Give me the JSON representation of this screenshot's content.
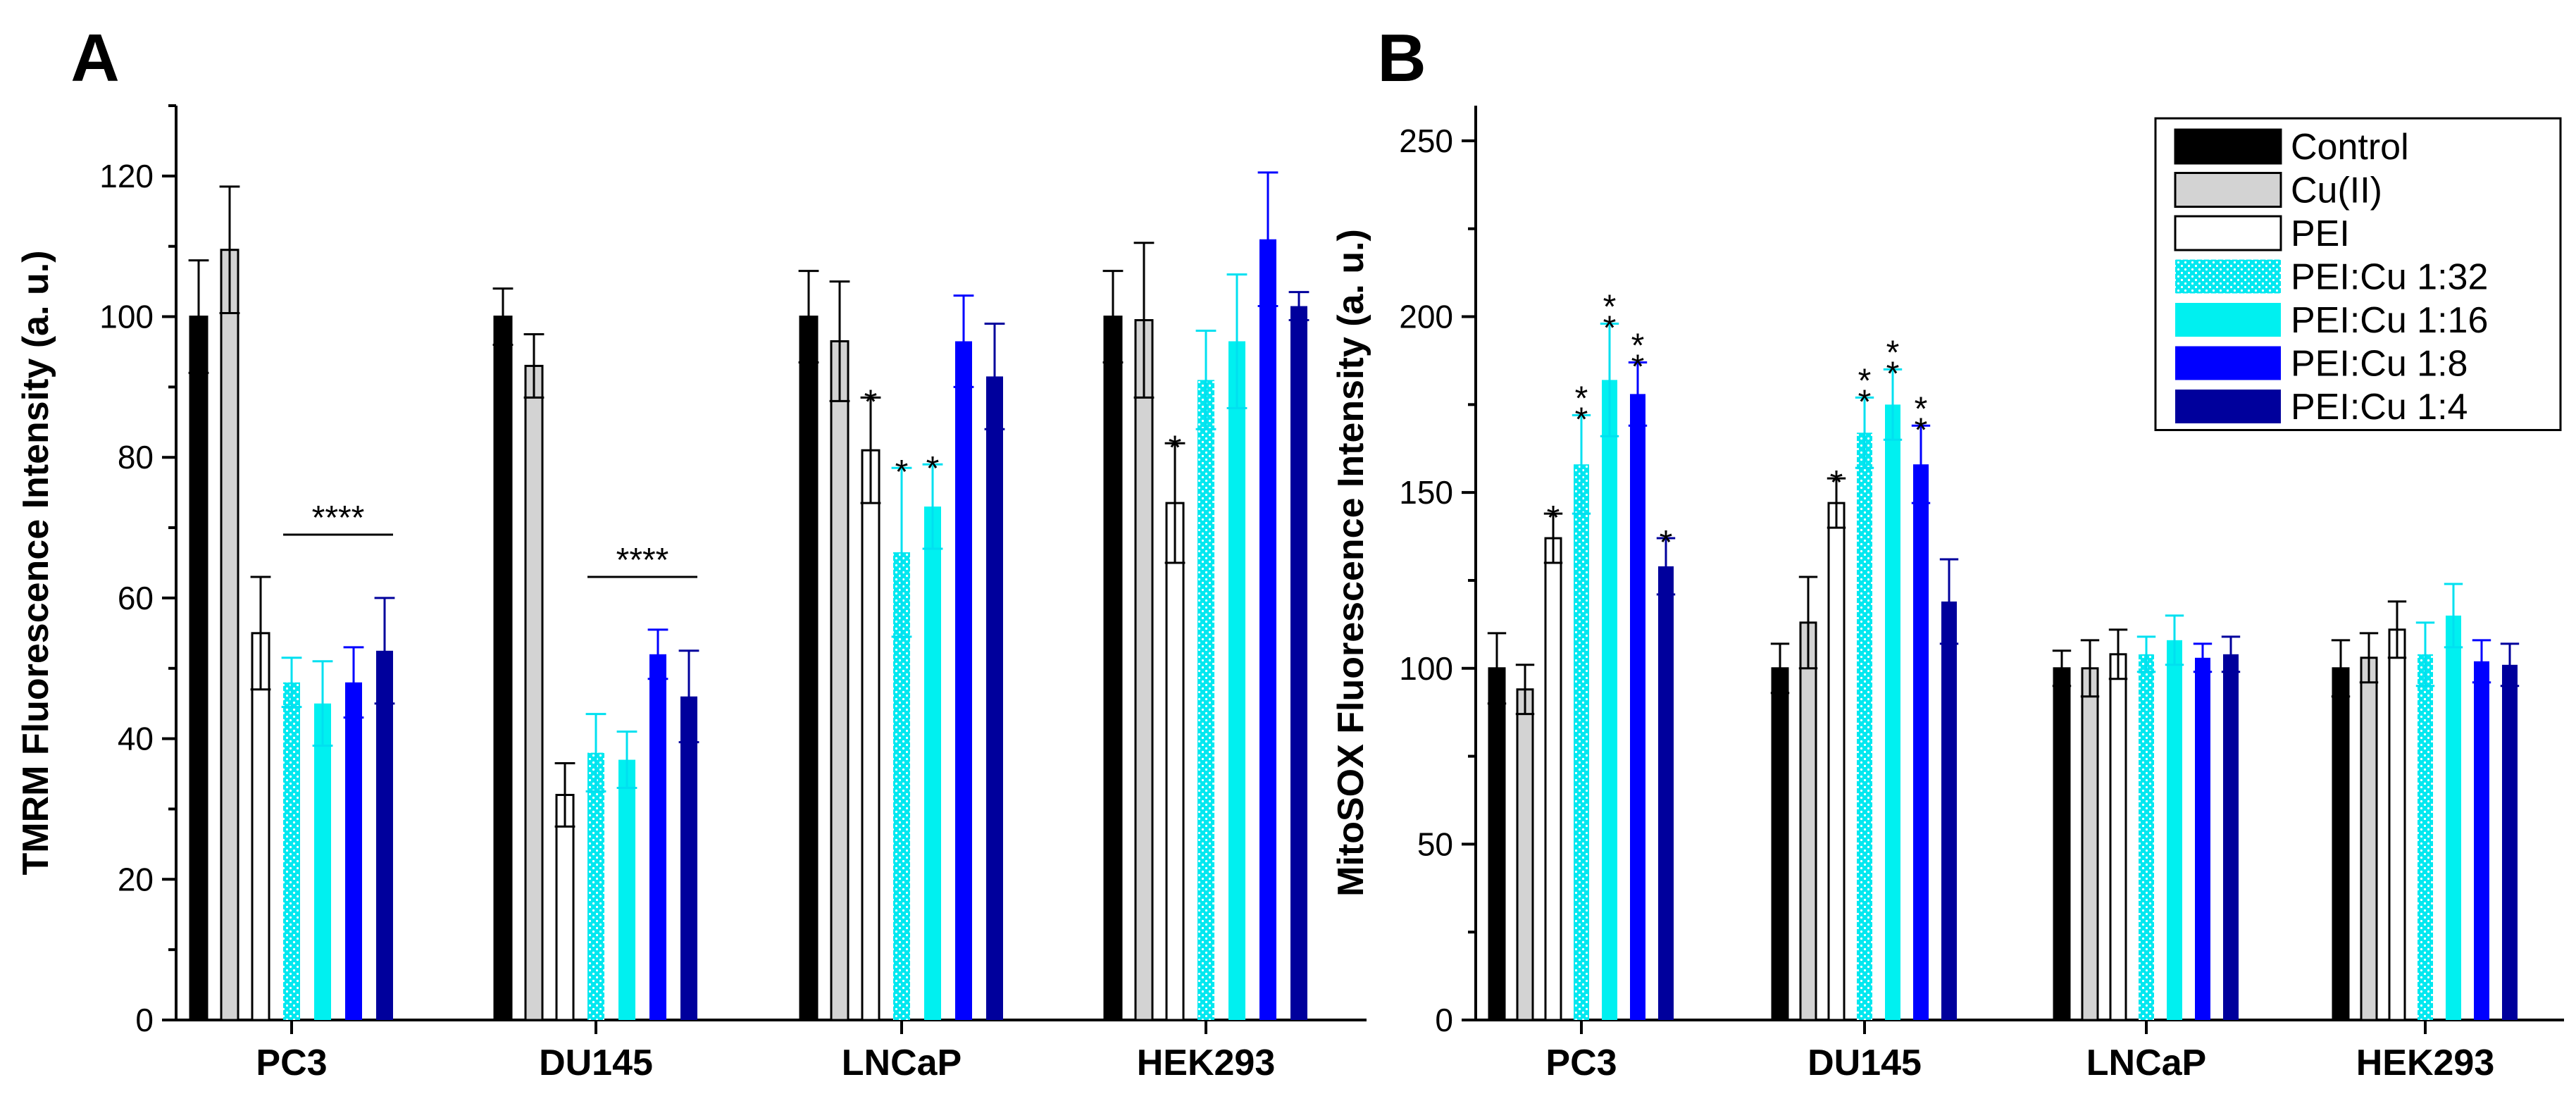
{
  "chart_data": [
    {
      "type": "bar",
      "panel_label": "A",
      "ylabel": "TMRM Fluorescence Intensity (a. u.)",
      "xlabel": "",
      "ylim": [
        0,
        130
      ],
      "yticks": [
        0,
        20,
        40,
        60,
        80,
        100,
        120
      ],
      "categories": [
        "PC3",
        "DU145",
        "LNCaP",
        "HEK293"
      ],
      "series": [
        {
          "name": "Control",
          "values": [
            100,
            100,
            100,
            100
          ],
          "errors": [
            8,
            4,
            6.5,
            6.5
          ]
        },
        {
          "name": "Cu(II)",
          "values": [
            109.5,
            93,
            96.5,
            99.5
          ],
          "errors": [
            9,
            4.5,
            8.5,
            11
          ]
        },
        {
          "name": "PEI",
          "values": [
            55,
            32,
            81,
            73.5
          ],
          "errors": [
            8,
            4.5,
            7.5,
            8.5
          ]
        },
        {
          "name": "PEI:Cu 1:32",
          "values": [
            48,
            38,
            66.5,
            91
          ],
          "errors": [
            3.5,
            5.5,
            12,
            7
          ]
        },
        {
          "name": "PEI:Cu 1:16",
          "values": [
            45,
            37,
            73,
            96.5
          ],
          "errors": [
            6,
            4,
            6,
            9.5
          ]
        },
        {
          "name": "PEI:Cu 1:8",
          "values": [
            48,
            52,
            96.5,
            111
          ],
          "errors": [
            5,
            3.5,
            6.5,
            9.5
          ]
        },
        {
          "name": "PEI:Cu 1:4",
          "values": [
            52.5,
            46,
            91.5,
            101.5
          ],
          "errors": [
            7.5,
            6.5,
            7.5,
            2
          ]
        }
      ],
      "annotations": [
        {
          "category": 0,
          "series_range": [
            3,
            6
          ],
          "text": "****",
          "y": 69
        },
        {
          "category": 1,
          "series_range": [
            3,
            6
          ],
          "text": "****",
          "y": 63
        },
        {
          "category": 2,
          "series": 2,
          "text": "*"
        },
        {
          "category": 2,
          "series": 3,
          "text": "*"
        },
        {
          "category": 2,
          "series": 4,
          "text": "*"
        },
        {
          "category": 3,
          "series": 2,
          "text": "*"
        }
      ]
    },
    {
      "type": "bar",
      "panel_label": "B",
      "ylabel": "MitoSOX Fluorescence Intensity (a. u.)",
      "xlabel": "",
      "ylim": [
        0,
        260
      ],
      "yticks": [
        0,
        50,
        100,
        150,
        200,
        250
      ],
      "categories": [
        "PC3",
        "DU145",
        "LNCaP",
        "HEK293"
      ],
      "series": [
        {
          "name": "Control",
          "values": [
            100,
            100,
            100,
            100
          ],
          "errors": [
            10,
            7,
            5,
            8
          ]
        },
        {
          "name": "Cu(II)",
          "values": [
            94,
            113,
            100,
            103
          ],
          "errors": [
            7,
            13,
            8,
            7
          ]
        },
        {
          "name": "PEI",
          "values": [
            137,
            147,
            104,
            111
          ],
          "errors": [
            7,
            7,
            7,
            8
          ]
        },
        {
          "name": "PEI:Cu 1:32",
          "values": [
            158,
            167,
            104,
            104
          ],
          "errors": [
            14,
            10,
            5,
            9
          ]
        },
        {
          "name": "PEI:Cu 1:16",
          "values": [
            182,
            175,
            108,
            115
          ],
          "errors": [
            16,
            10,
            7,
            9
          ]
        },
        {
          "name": "PEI:Cu 1:8",
          "values": [
            178,
            158,
            103,
            102
          ],
          "errors": [
            9,
            11,
            4,
            6
          ]
        },
        {
          "name": "PEI:Cu 1:4",
          "values": [
            129,
            119,
            104,
            101
          ],
          "errors": [
            8,
            12,
            5,
            6
          ]
        }
      ],
      "annotations": [
        {
          "category": 0,
          "series": 2,
          "text": "*"
        },
        {
          "category": 0,
          "series": 3,
          "text": "**"
        },
        {
          "category": 0,
          "series": 4,
          "text": "**"
        },
        {
          "category": 0,
          "series": 5,
          "text": "**"
        },
        {
          "category": 0,
          "series": 6,
          "text": "*"
        },
        {
          "category": 1,
          "series": 2,
          "text": "*"
        },
        {
          "category": 1,
          "series": 3,
          "text": "**"
        },
        {
          "category": 1,
          "series": 4,
          "text": "**"
        },
        {
          "category": 1,
          "series": 5,
          "text": "**"
        }
      ]
    }
  ],
  "legend": {
    "placement": "top-right of panel B",
    "entries": [
      "Control",
      "Cu(II)",
      "PEI",
      "PEI:Cu 1:32",
      "PEI:Cu 1:16",
      "PEI:Cu 1:8",
      "PEI:Cu 1:4"
    ]
  },
  "series_styles": [
    {
      "name": "Control",
      "fill": "#000000",
      "pattern": "solid",
      "error_color": "#000000"
    },
    {
      "name": "Cu(II)",
      "fill": "#d3d3d3",
      "pattern": "solid",
      "error_color": "#000000"
    },
    {
      "name": "PEI",
      "fill": "#ffffff",
      "pattern": "solid",
      "error_color": "#000000"
    },
    {
      "name": "PEI:Cu 1:32",
      "fill": "#00e8f0",
      "pattern": "crosshatch",
      "error_color": "#00e0f0"
    },
    {
      "name": "PEI:Cu 1:16",
      "fill": "#00f0f0",
      "pattern": "solid",
      "error_color": "#00e0f0"
    },
    {
      "name": "PEI:Cu 1:8",
      "fill": "#0000ff",
      "pattern": "solid",
      "error_color": "#0000ff"
    },
    {
      "name": "PEI:Cu 1:4",
      "fill": "#00009c",
      "pattern": "solid",
      "error_color": "#00009c"
    }
  ]
}
